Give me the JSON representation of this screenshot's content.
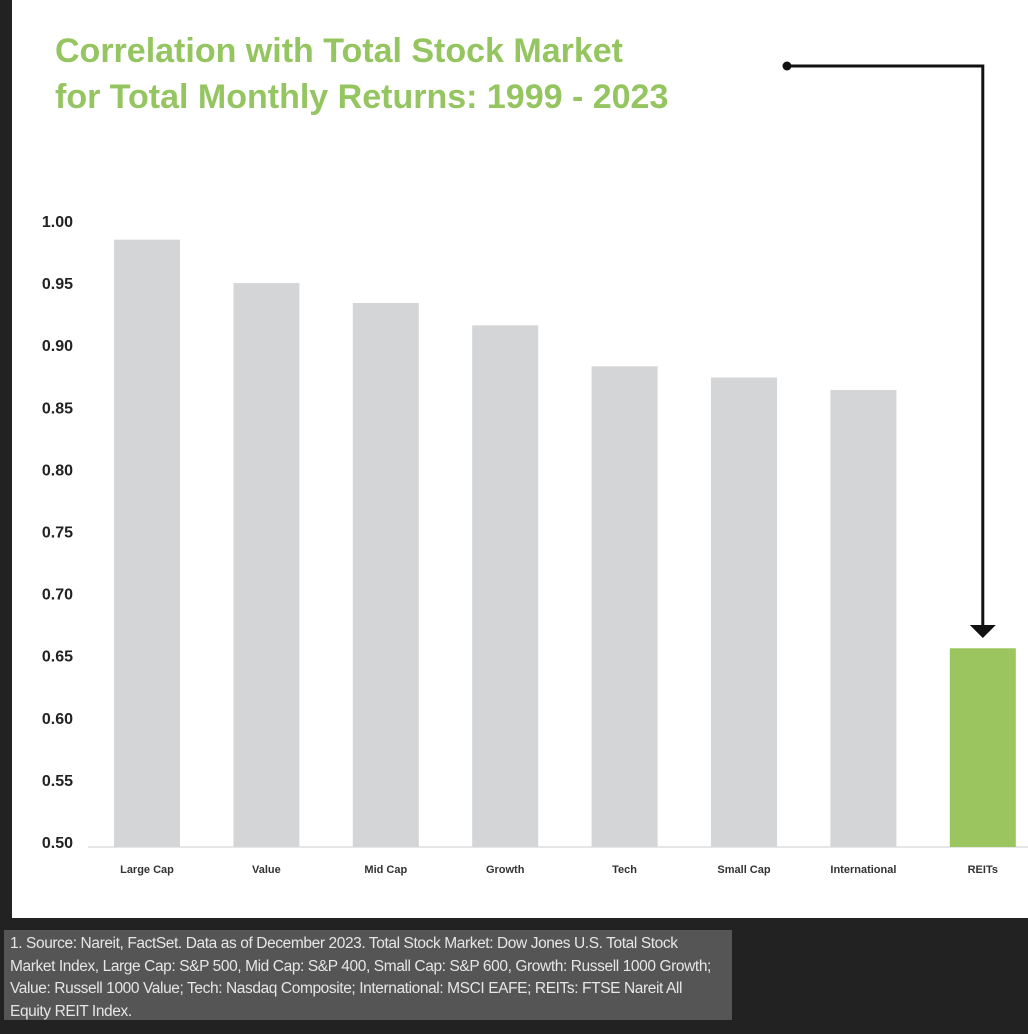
{
  "chart_data": {
    "type": "bar",
    "title": "Correlation with Total Stock Market for Total Monthly Returns: 1999 - 2023",
    "title_lines": [
      "Correlation with Total Stock Market",
      "for Total Monthly Returns: 1999 - 2023"
    ],
    "categories": [
      "Large Cap",
      "Value",
      "Mid Cap",
      "Growth",
      "Tech",
      "Small Cap",
      "International",
      "REITs"
    ],
    "values": [
      0.985,
      0.95,
      0.934,
      0.916,
      0.883,
      0.874,
      0.864,
      0.656
    ],
    "ylim": [
      0.5,
      1.0
    ],
    "yticks": [
      "0.50",
      "0.55",
      "0.60",
      "0.65",
      "0.70",
      "0.75",
      "0.80",
      "0.85",
      "0.90",
      "0.95",
      "1.00"
    ],
    "xlabel": "",
    "ylabel": "",
    "grid": false,
    "highlight_category": "REITs",
    "annotation": "arrow pointing from title to REITs bar",
    "colors": {
      "bar": "#d4d5d7",
      "highlight": "#9bc55f",
      "title": "#94c560",
      "arrow": "#111111"
    }
  },
  "footnote": "1. Source: Nareit, FactSet. Data as of December 2023. Total Stock Market: Dow Jones U.S. Total Stock Market Index, Large Cap: S&P 500, Mid Cap: S&P 400, Small Cap: S&P 600, Growth: Russell 1000 Growth; Value: Russell 1000 Value; Tech: Nasdaq Composite; International: MSCI EAFE; REITs: FTSE Nareit All Equity REIT Index."
}
